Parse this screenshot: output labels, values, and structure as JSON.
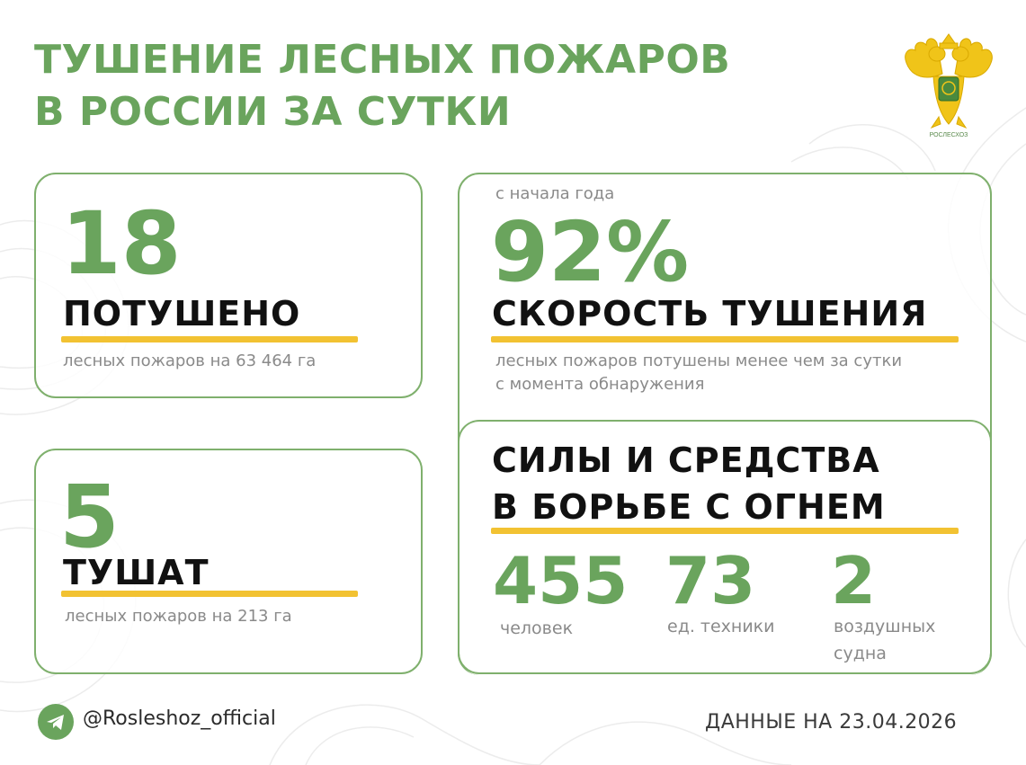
{
  "title": {
    "line1": "ТУШЕНИЕ ЛЕСНЫХ ПОЖАРОВ",
    "line2": "В РОССИИ ЗА СУТКИ"
  },
  "emblem": {
    "icon": "double-headed-eagle-emblem",
    "caption": "РОСЛЕСХОЗ"
  },
  "extinguished": {
    "value": "18",
    "label": "ПОТУШЕНО",
    "note": "лесных пожаров на 63 464 га"
  },
  "active": {
    "value": "5",
    "label": "ТУШАТ",
    "note": "лесных пожаров на 213 га"
  },
  "speed": {
    "prefix": "с начала года",
    "value": "92%",
    "label": "СКОРОСТЬ ТУШЕНИЯ",
    "note_line1": "лесных пожаров потушены менее чем за сутки",
    "note_line2": "с момента обнаружения"
  },
  "forces": {
    "heading_line1": "СИЛЫ И СРЕДСТВА",
    "heading_line2": "В БОРЬБЕ С ОГНЕМ",
    "items": [
      {
        "value": "455",
        "label": "человек"
      },
      {
        "value": "73",
        "label": "ед. техники"
      },
      {
        "value": "2",
        "label_line1": "воздушных",
        "label_line2": "судна"
      }
    ]
  },
  "footer": {
    "handle": "@Rosleshoz_official",
    "date": "ДАННЫЕ НА 23.04.2026",
    "icon": "telegram-icon"
  },
  "colors": {
    "accent_green": "#6aa45d",
    "underline_yellow": "#f2c232",
    "heading_black": "#111111",
    "note_gray": "#8a8a8a"
  }
}
